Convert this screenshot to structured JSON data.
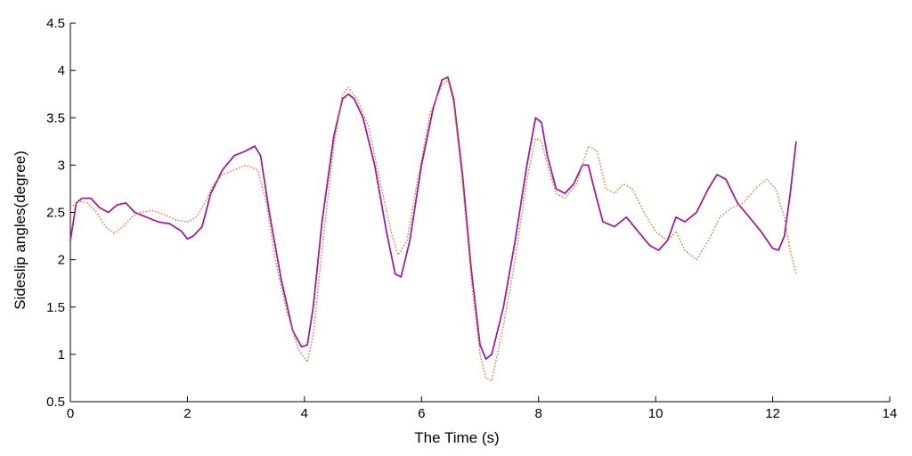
{
  "chart_data": {
    "type": "line",
    "title": "",
    "xlabel": "The Time (s)",
    "ylabel": "Sideslip angles(degree)",
    "xlim": [
      0,
      14
    ],
    "ylim": [
      0.5,
      4.5
    ],
    "xticks": [
      0,
      2,
      4,
      6,
      8,
      10,
      12,
      14
    ],
    "yticks": [
      0.5,
      1,
      1.5,
      2,
      2.5,
      3,
      3.5,
      4,
      4.5
    ],
    "grid": false,
    "series": [
      {
        "color": "#9b1f9b",
        "style": "solid",
        "x": [
          0,
          0.1,
          0.2,
          0.35,
          0.5,
          0.65,
          0.8,
          0.95,
          1.1,
          1.3,
          1.5,
          1.7,
          1.9,
          2.0,
          2.1,
          2.25,
          2.4,
          2.6,
          2.8,
          3.0,
          3.15,
          3.25,
          3.4,
          3.6,
          3.8,
          3.95,
          4.05,
          4.15,
          4.3,
          4.5,
          4.65,
          4.75,
          4.85,
          5.0,
          5.2,
          5.4,
          5.55,
          5.65,
          5.8,
          6.0,
          6.2,
          6.35,
          6.45,
          6.55,
          6.7,
          6.85,
          7.0,
          7.1,
          7.2,
          7.4,
          7.6,
          7.8,
          7.95,
          8.05,
          8.15,
          8.3,
          8.45,
          8.6,
          8.75,
          8.85,
          8.95,
          9.1,
          9.3,
          9.5,
          9.7,
          9.9,
          10.05,
          10.2,
          10.35,
          10.5,
          10.7,
          10.9,
          11.05,
          11.2,
          11.4,
          11.6,
          11.8,
          12.0,
          12.1,
          12.2,
          12.3,
          12.4
        ],
        "y": [
          2.2,
          2.6,
          2.65,
          2.65,
          2.55,
          2.5,
          2.58,
          2.6,
          2.5,
          2.45,
          2.4,
          2.38,
          2.3,
          2.22,
          2.25,
          2.35,
          2.7,
          2.95,
          3.1,
          3.15,
          3.2,
          3.1,
          2.5,
          1.8,
          1.25,
          1.08,
          1.1,
          1.5,
          2.4,
          3.3,
          3.7,
          3.75,
          3.7,
          3.5,
          3.0,
          2.3,
          1.85,
          1.82,
          2.2,
          3.0,
          3.6,
          3.9,
          3.93,
          3.7,
          2.9,
          1.9,
          1.1,
          0.95,
          1.0,
          1.5,
          2.2,
          3.0,
          3.5,
          3.45,
          3.1,
          2.75,
          2.7,
          2.8,
          3.0,
          3.0,
          2.75,
          2.4,
          2.35,
          2.45,
          2.3,
          2.15,
          2.1,
          2.2,
          2.45,
          2.4,
          2.5,
          2.75,
          2.9,
          2.85,
          2.6,
          2.45,
          2.3,
          2.12,
          2.1,
          2.25,
          2.7,
          3.25
        ]
      },
      {
        "color": "#d0752f",
        "style": "dotted",
        "x": [
          0,
          0.15,
          0.3,
          0.45,
          0.6,
          0.75,
          0.9,
          1.05,
          1.2,
          1.4,
          1.6,
          1.8,
          2.0,
          2.15,
          2.3,
          2.45,
          2.6,
          2.8,
          3.0,
          3.2,
          3.35,
          3.5,
          3.7,
          3.9,
          4.05,
          4.15,
          4.3,
          4.5,
          4.65,
          4.75,
          4.9,
          5.1,
          5.3,
          5.5,
          5.6,
          5.75,
          5.95,
          6.15,
          6.35,
          6.45,
          6.55,
          6.7,
          6.85,
          7.0,
          7.1,
          7.2,
          7.4,
          7.6,
          7.8,
          7.95,
          8.05,
          8.15,
          8.3,
          8.45,
          8.65,
          8.85,
          9.0,
          9.15,
          9.3,
          9.45,
          9.6,
          9.8,
          10.0,
          10.2,
          10.35,
          10.5,
          10.7,
          10.9,
          11.1,
          11.3,
          11.5,
          11.7,
          11.9,
          12.05,
          12.2,
          12.3,
          12.4
        ],
        "y": [
          2.55,
          2.62,
          2.6,
          2.5,
          2.35,
          2.28,
          2.35,
          2.45,
          2.5,
          2.52,
          2.48,
          2.42,
          2.4,
          2.45,
          2.6,
          2.8,
          2.9,
          2.95,
          3.0,
          2.95,
          2.6,
          2.0,
          1.45,
          1.05,
          0.92,
          1.2,
          2.1,
          3.2,
          3.75,
          3.82,
          3.7,
          3.4,
          2.8,
          2.25,
          2.05,
          2.2,
          2.9,
          3.55,
          3.85,
          3.9,
          3.65,
          2.8,
          1.8,
          1.0,
          0.75,
          0.72,
          1.3,
          2.0,
          2.85,
          3.28,
          3.25,
          3.0,
          2.7,
          2.65,
          2.8,
          3.2,
          3.15,
          2.75,
          2.7,
          2.8,
          2.75,
          2.5,
          2.3,
          2.2,
          2.3,
          2.1,
          2.0,
          2.2,
          2.45,
          2.55,
          2.6,
          2.75,
          2.85,
          2.75,
          2.45,
          2.1,
          1.85
        ]
      }
    ]
  }
}
